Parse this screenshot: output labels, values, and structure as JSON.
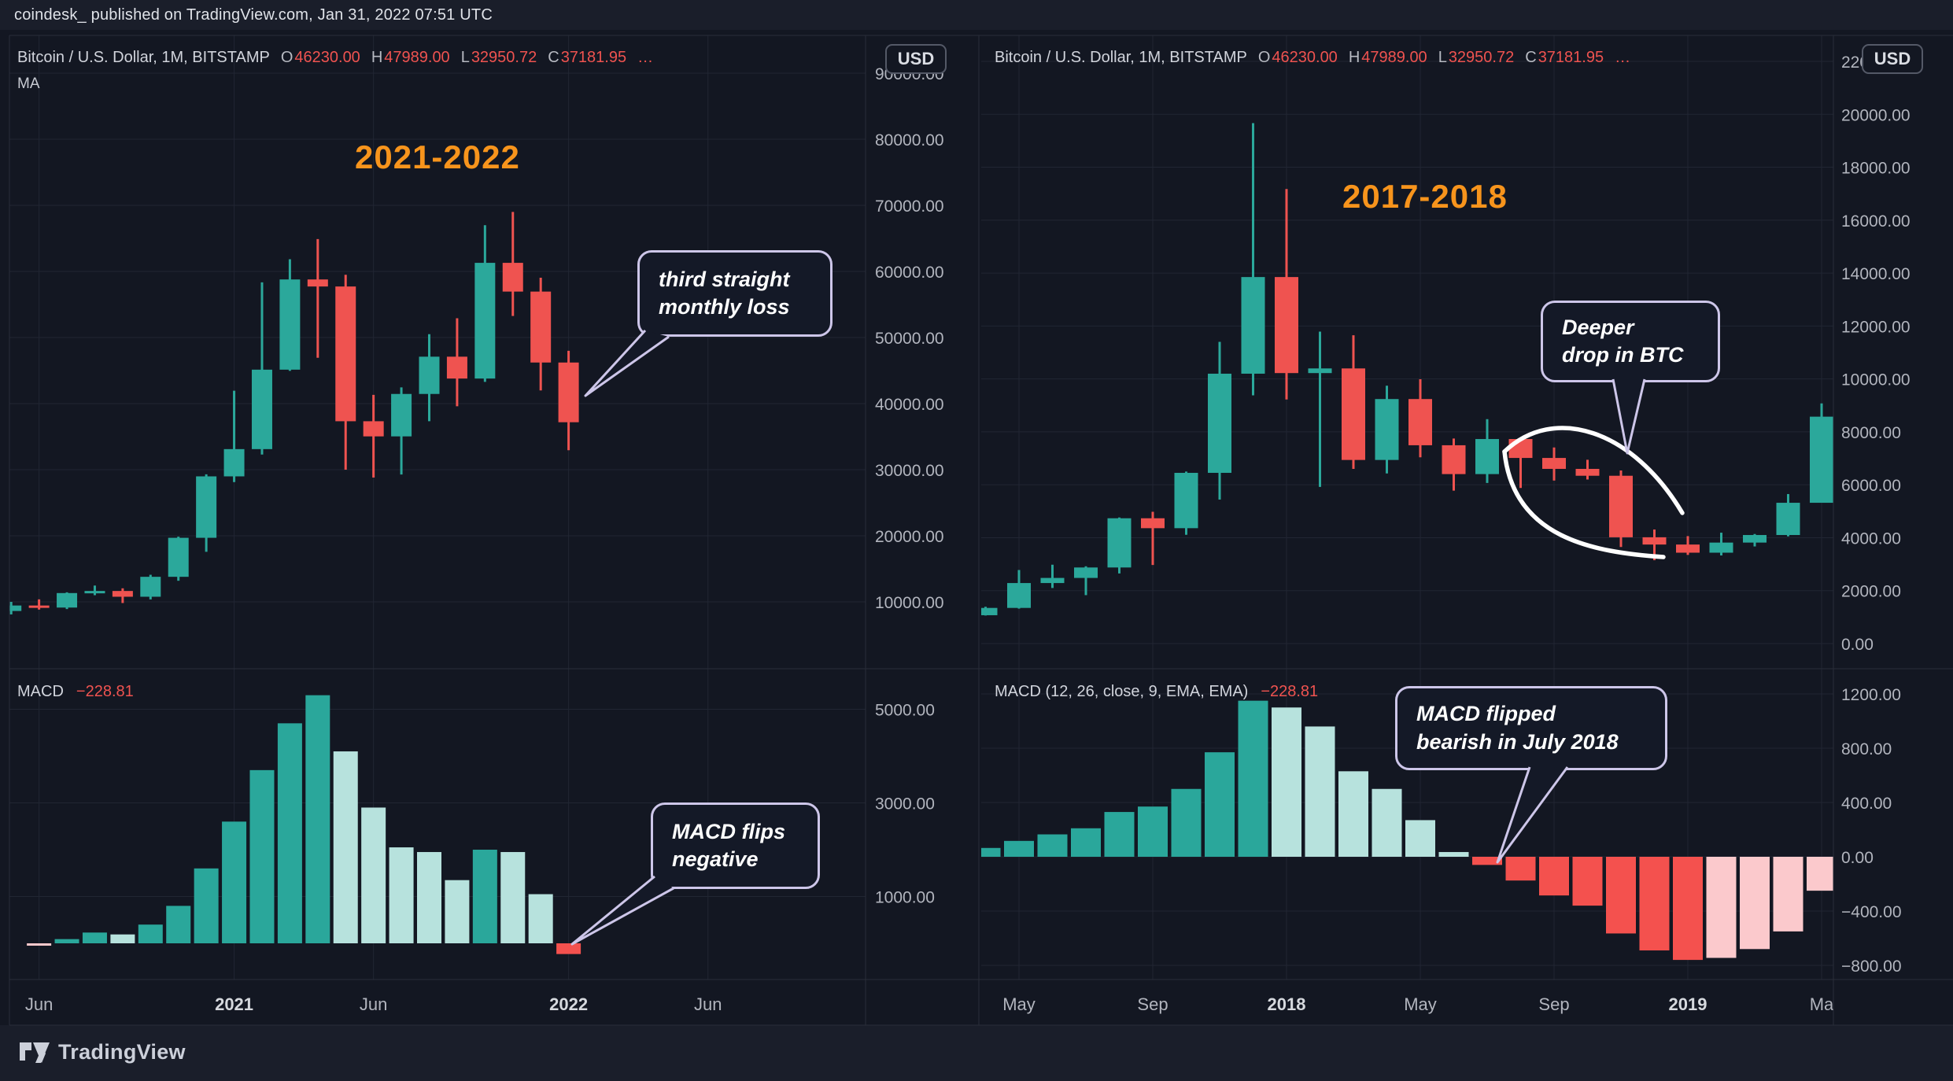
{
  "header": {
    "credit": "coindesk_ published on TradingView.com, Jan 31, 2022 07:51 UTC"
  },
  "footer": {
    "logo_text": "TradingView"
  },
  "colors": {
    "background": "#131722",
    "page": "#1a1e2a",
    "grid": "#212633",
    "border": "#2a2e39",
    "up": "#2ba89b",
    "down": "#ef5350",
    "hist_up": "#2aa79b",
    "hist_up_fade": "#b7e2dd",
    "hist_down": "#f4514e",
    "hist_down_fade": "#fbc9cc",
    "accent_orange": "#f7941c",
    "axis_text": "#b2b5be",
    "bright_text": "#d6d9de",
    "callout_border": "#cdc6e9",
    "annotation_white": "#ffffff",
    "value_red": "#ef5350"
  },
  "chart_data": [
    {
      "type": "candlestick",
      "period_label": "2021-2022",
      "legend": {
        "symbol": "Bitcoin / U.S. Dollar, 1M, BITSTAMP",
        "items": [
          {
            "k": "O",
            "v": "46230.00"
          },
          {
            "k": "H",
            "v": "47989.00"
          },
          {
            "k": "L",
            "v": "32950.72"
          },
          {
            "k": "C",
            "v": "37181.95"
          }
        ],
        "ellipsis": "…",
        "ma": "MA"
      },
      "macd_legend": {
        "title": "MACD",
        "value": "−228.81"
      },
      "price_axis": {
        "currency_badge": "USD",
        "ticks": [
          {
            "label": "90000.00",
            "value": 90000
          },
          {
            "label": "80000.00",
            "value": 80000
          },
          {
            "label": "70000.00",
            "value": 70000
          },
          {
            "label": "60000.00",
            "value": 60000
          },
          {
            "label": "50000.00",
            "value": 50000
          },
          {
            "label": "40000.00",
            "value": 40000
          },
          {
            "label": "30000.00",
            "value": 30000
          },
          {
            "label": "20000.00",
            "value": 20000
          },
          {
            "label": "10000.00",
            "value": 10000
          }
        ]
      },
      "macd_axis": {
        "ticks": [
          {
            "label": "5000.00",
            "value": 5000
          },
          {
            "label": "3000.00",
            "value": 3000
          },
          {
            "label": "1000.00",
            "value": 1000
          }
        ]
      },
      "time_axis": [
        {
          "label": "Jun",
          "idx": 1,
          "year": false
        },
        {
          "label": "2021",
          "idx": 8,
          "year": true
        },
        {
          "label": "Jun",
          "idx": 13,
          "year": false
        },
        {
          "label": "2022",
          "idx": 20,
          "year": true
        },
        {
          "label": "Jun",
          "idx": 25,
          "year": false
        }
      ],
      "candles": {
        "months": [
          "May 2020",
          "Jun 2020",
          "Jul 2020",
          "Aug 2020",
          "Sep 2020",
          "Oct 2020",
          "Nov 2020",
          "Dec 2020",
          "Jan 2021",
          "Feb 2021",
          "Mar 2021",
          "Apr 2021",
          "May 2021",
          "Jun 2021",
          "Jul 2021",
          "Aug 2021",
          "Sep 2021",
          "Oct 2021",
          "Nov 2021",
          "Dec 2021",
          "Jan 2022"
        ],
        "ohlc": [
          [
            8620,
            9996,
            8101,
            9448
          ],
          [
            9448,
            10380,
            8833,
            9138
          ],
          [
            9138,
            11444,
            8910,
            11333
          ],
          [
            11333,
            12468,
            11010,
            11649
          ],
          [
            11649,
            12050,
            9825,
            10776
          ],
          [
            10776,
            14100,
            10371,
            13791
          ],
          [
            13791,
            19863,
            13195,
            19695
          ],
          [
            19695,
            29300,
            17572,
            28990
          ],
          [
            28990,
            41950,
            28130,
            33114
          ],
          [
            33114,
            58352,
            32296,
            45137
          ],
          [
            45137,
            61844,
            44950,
            58786
          ],
          [
            58786,
            64895,
            46930,
            57720
          ],
          [
            57720,
            59500,
            30000,
            37332
          ],
          [
            37332,
            41330,
            28805,
            35040
          ],
          [
            35040,
            42448,
            29278,
            41461
          ],
          [
            41461,
            50500,
            37332,
            47100
          ],
          [
            47100,
            52920,
            39600,
            43790
          ],
          [
            43790,
            66999,
            43283,
            61300
          ],
          [
            61300,
            69000,
            53256,
            56950
          ],
          [
            56950,
            59053,
            42000,
            46216
          ],
          [
            46216,
            47989,
            32950,
            37181
          ]
        ]
      },
      "macd": {
        "start_idx": 1,
        "values": [
          -40,
          90,
          230,
          190,
          400,
          800,
          1600,
          2600,
          3700,
          4700,
          5300,
          4100,
          2900,
          2050,
          1950,
          1350,
          2000,
          1950,
          1050,
          -229
        ],
        "kinds": [
          "down_fade",
          "up",
          "up",
          "up_fade",
          "up",
          "up",
          "up",
          "up",
          "up",
          "up",
          "up",
          "up_fade",
          "up_fade",
          "up_fade",
          "up_fade",
          "up_fade",
          "up",
          "up_fade",
          "up_fade",
          "down"
        ]
      },
      "annotations": {
        "price_callout": {
          "line1": "third straight",
          "line2": "monthly loss"
        },
        "macd_callout": {
          "line1": "MACD flips",
          "line2": "negative"
        }
      }
    },
    {
      "type": "candlestick",
      "period_label": "2017-2018",
      "legend": {
        "symbol": "Bitcoin / U.S. Dollar, 1M, BITSTAMP",
        "items": [
          {
            "k": "O",
            "v": "46230.00"
          },
          {
            "k": "H",
            "v": "47989.00"
          },
          {
            "k": "L",
            "v": "32950.72"
          },
          {
            "k": "C",
            "v": "37181.95"
          }
        ],
        "ellipsis": "…"
      },
      "macd_legend": {
        "title": "MACD (12, 26, close, 9, EMA, EMA)",
        "value": "−228.81"
      },
      "price_axis": {
        "currency_badge": "USD",
        "ticks": [
          {
            "label": "22000.00",
            "value": 22000
          },
          {
            "label": "20000.00",
            "value": 20000
          },
          {
            "label": "18000.00",
            "value": 18000
          },
          {
            "label": "16000.00",
            "value": 16000
          },
          {
            "label": "14000.00",
            "value": 14000
          },
          {
            "label": "12000.00",
            "value": 12000
          },
          {
            "label": "10000.00",
            "value": 10000
          },
          {
            "label": "8000.00",
            "value": 8000
          },
          {
            "label": "6000.00",
            "value": 6000
          },
          {
            "label": "4000.00",
            "value": 4000
          },
          {
            "label": "2000.00",
            "value": 2000
          },
          {
            "label": "0.00",
            "value": 0
          }
        ]
      },
      "macd_axis": {
        "ticks": [
          {
            "label": "1200.00",
            "value": 1200
          },
          {
            "label": "800.00",
            "value": 800
          },
          {
            "label": "400.00",
            "value": 400
          },
          {
            "label": "0.00",
            "value": 0
          },
          {
            "label": "−400.00",
            "value": -400
          },
          {
            "label": "−800.00",
            "value": -800
          }
        ]
      },
      "time_axis": [
        {
          "label": "May",
          "idx": 1,
          "year": false
        },
        {
          "label": "Sep",
          "idx": 5,
          "year": false
        },
        {
          "label": "2018",
          "idx": 9,
          "year": true
        },
        {
          "label": "May",
          "idx": 13,
          "year": false
        },
        {
          "label": "Sep",
          "idx": 17,
          "year": false
        },
        {
          "label": "2019",
          "idx": 21,
          "year": true
        },
        {
          "label": "Ma",
          "idx": 25,
          "year": false
        }
      ],
      "candles": {
        "months": [
          "Apr 2017",
          "May 2017",
          "Jun 2017",
          "Jul 2017",
          "Aug 2017",
          "Sep 2017",
          "Oct 2017",
          "Nov 2017",
          "Dec 2017",
          "Jan 2018",
          "Feb 2018",
          "Mar 2018",
          "Apr 2018",
          "May 2018",
          "Jun 2018",
          "Jul 2018",
          "Aug 2018",
          "Sep 2018",
          "Oct 2018",
          "Nov 2018",
          "Dec 2018",
          "Jan 2019",
          "Feb 2019",
          "Mar 2019",
          "Apr 2019",
          "May 2019"
        ],
        "ohlc": [
          [
            1071,
            1390,
            1060,
            1347
          ],
          [
            1347,
            2780,
            1320,
            2287
          ],
          [
            2287,
            2980,
            2100,
            2480
          ],
          [
            2480,
            2920,
            1830,
            2875
          ],
          [
            2875,
            4765,
            2650,
            4735
          ],
          [
            4735,
            4980,
            2970,
            4360
          ],
          [
            4360,
            6500,
            4110,
            6451
          ],
          [
            6451,
            11400,
            5440,
            10198
          ],
          [
            10198,
            19666,
            9380,
            13850
          ],
          [
            13850,
            17176,
            9222,
            10221
          ],
          [
            10221,
            11786,
            5920,
            10397
          ],
          [
            10397,
            11650,
            6600,
            6938
          ],
          [
            6938,
            9745,
            6430,
            9240
          ],
          [
            9240,
            9990,
            7040,
            7494
          ],
          [
            7494,
            7750,
            5780,
            6404
          ],
          [
            6404,
            8480,
            6070,
            7729
          ],
          [
            7729,
            7760,
            5880,
            7014
          ],
          [
            7014,
            7410,
            6160,
            6601
          ],
          [
            6601,
            6945,
            6200,
            6341
          ],
          [
            6341,
            6540,
            3650,
            4017
          ],
          [
            4017,
            4310,
            3150,
            3742
          ],
          [
            3742,
            4060,
            3350,
            3434
          ],
          [
            3434,
            4190,
            3330,
            3816
          ],
          [
            3816,
            4140,
            3670,
            4102
          ],
          [
            4102,
            5650,
            4050,
            5320
          ],
          [
            5320,
            9074,
            5320,
            8574
          ]
        ]
      },
      "macd": {
        "start_idx": 0,
        "values": [
          65,
          117,
          165,
          210,
          330,
          370,
          500,
          770,
          1150,
          1100,
          960,
          630,
          500,
          270,
          35,
          -60,
          -175,
          -285,
          -360,
          -565,
          -690,
          -760,
          -745,
          -680,
          -550,
          -250
        ],
        "kinds": [
          "up",
          "up",
          "up",
          "up",
          "up",
          "up",
          "up",
          "up",
          "up",
          "up_fade",
          "up_fade",
          "up_fade",
          "up_fade",
          "up_fade",
          "up_fade",
          "down",
          "down",
          "down",
          "down",
          "down",
          "down",
          "down",
          "down_fade",
          "down_fade",
          "down_fade",
          "down_fade"
        ]
      },
      "annotations": {
        "price_callout": {
          "line1": "Deeper",
          "line2": "drop in BTC"
        },
        "macd_callout": {
          "line1": "MACD flipped",
          "line2": "bearish in July 2018"
        }
      }
    }
  ]
}
